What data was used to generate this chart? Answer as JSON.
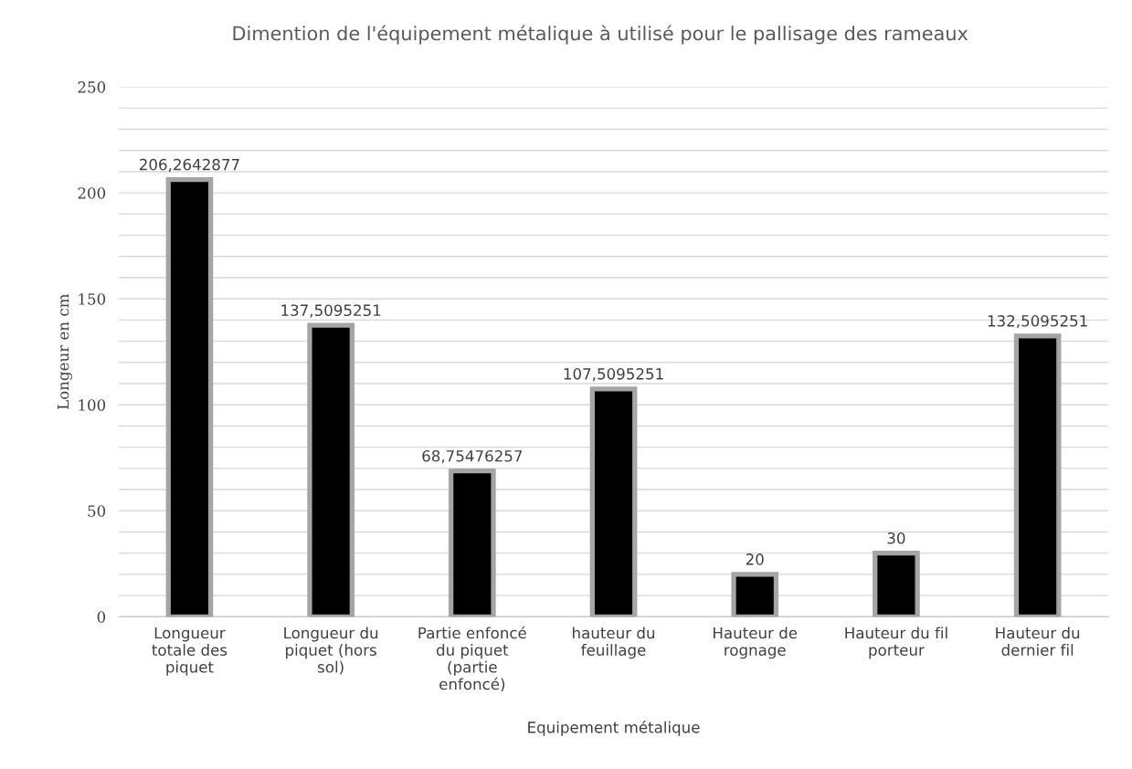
{
  "chart_data": {
    "type": "bar",
    "title": "Dimention de l'équipement métalique à utilisé pour le pallisage des rameaux",
    "xlabel": "Equipement métalique",
    "ylabel": "Longeur en cm",
    "categories": [
      "Longueur totale des piquet",
      "Longueur du piquet (hors sol)",
      "Partie enfoncé du piquet (partie enfoncé)",
      "hauteur du feuillage",
      "Hauteur de rognage",
      "Hauteur du fil porteur",
      "Hauteur du dernier fil"
    ],
    "series": [
      {
        "color": "#000000",
        "values": [
          206.2642877,
          137.5095251,
          68.75476257,
          107.5095251,
          20,
          30,
          132.5095251
        ],
        "value_labels": [
          "206,2642877",
          "137,5095251",
          "68,75476257",
          "107,5095251",
          "20",
          "30",
          "132,5095251"
        ]
      }
    ],
    "ylim": [
      0,
      250
    ],
    "yticks": [
      0,
      {
        "value": 10,
        "label": null
      },
      {
        "value": 20,
        "label": null
      },
      {
        "value": 30,
        "label": null
      },
      {
        "value": 40,
        "label": null
      },
      50,
      {
        "value": 60,
        "label": null
      },
      {
        "value": 70,
        "label": null
      },
      {
        "value": 80,
        "label": null
      },
      {
        "value": 90,
        "label": null
      },
      100,
      {
        "value": 110,
        "label": null
      },
      {
        "value": 120,
        "label": null
      },
      {
        "value": 130,
        "label": null
      },
      {
        "value": 140,
        "label": null
      },
      150,
      {
        "value": 160,
        "label": null
      },
      {
        "value": 170,
        "label": null
      },
      {
        "value": 180,
        "label": null
      },
      {
        "value": 190,
        "label": null
      },
      200,
      {
        "value": 210,
        "label": null
      },
      {
        "value": 220,
        "label": null
      },
      {
        "value": 230,
        "label": null
      },
      {
        "value": 240,
        "label": null
      },
      250
    ],
    "grid": "y",
    "legend": false
  }
}
